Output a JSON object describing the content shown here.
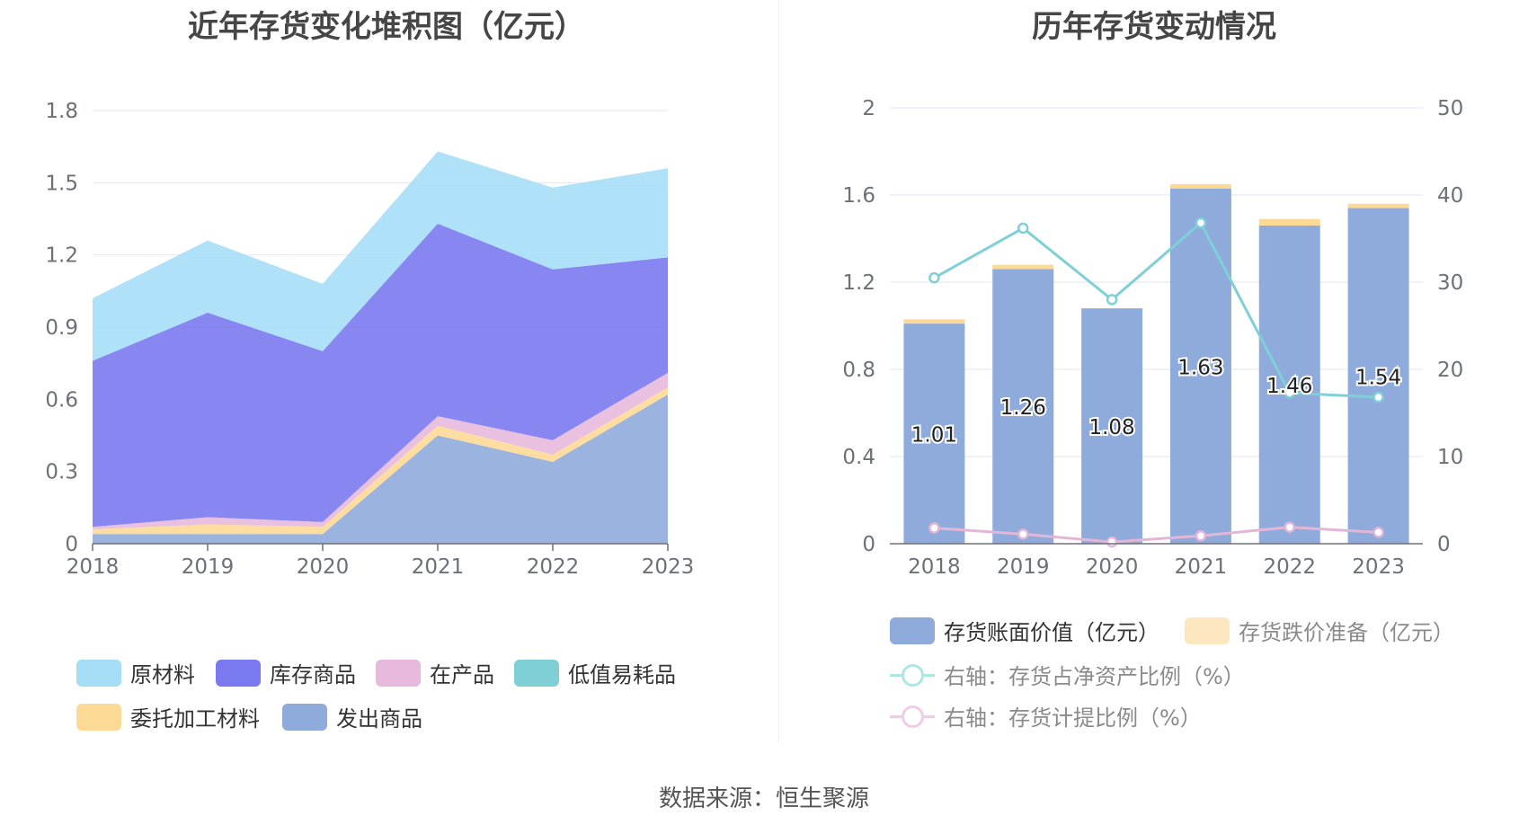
{
  "left_title": "近年存货变化堆积图（亿元）",
  "right_title": "历年存货变动情况",
  "source": "数据来源：恒生聚源",
  "chart_data": [
    {
      "type": "area",
      "stacked": true,
      "title": "近年存货变化堆积图（亿元）",
      "x": [
        "2018",
        "2019",
        "2020",
        "2021",
        "2022",
        "2023"
      ],
      "ylim": [
        0,
        1.8
      ],
      "yticks": [
        "0",
        "0.3",
        "0.6",
        "0.9",
        "1.2",
        "1.5",
        "1.8"
      ],
      "grid": true,
      "legend_position": "bottom",
      "series": [
        {
          "name": "发出商品",
          "color": "#8fabdc",
          "values": [
            0.04,
            0.04,
            0.04,
            0.45,
            0.34,
            0.62
          ]
        },
        {
          "name": "委托加工材料",
          "color": "#fdd996",
          "values": [
            0.02,
            0.04,
            0.03,
            0.04,
            0.03,
            0.03
          ]
        },
        {
          "name": "低值易耗品",
          "color": "#7fd0d6",
          "values": [
            0.0,
            0.0,
            0.0,
            0.0,
            0.0,
            0.0
          ]
        },
        {
          "name": "在产品",
          "color": "#e7b9dc",
          "values": [
            0.01,
            0.03,
            0.02,
            0.04,
            0.06,
            0.06
          ]
        },
        {
          "name": "库存商品",
          "color": "#7b79f0",
          "values": [
            0.69,
            0.85,
            0.71,
            0.8,
            0.71,
            0.48
          ]
        },
        {
          "name": "原材料",
          "color": "#a6def7",
          "values": [
            0.26,
            0.3,
            0.28,
            0.3,
            0.34,
            0.37
          ]
        }
      ],
      "legend_order": [
        "原材料",
        "库存商品",
        "在产品",
        "低值易耗品",
        "委托加工材料",
        "发出商品"
      ]
    },
    {
      "type": "bar",
      "title": "历年存货变动情况",
      "categories": [
        "2018",
        "2019",
        "2020",
        "2021",
        "2022",
        "2023"
      ],
      "ylim": [
        0,
        2
      ],
      "yticks": [
        "0",
        "0.4",
        "0.8",
        "1.2",
        "1.6",
        "2"
      ],
      "y2lim": [
        0,
        50
      ],
      "y2ticks": [
        "0",
        "10",
        "20",
        "30",
        "40",
        "50"
      ],
      "grid": true,
      "legend_position": "bottom",
      "series": [
        {
          "name": "存货账面价值（亿元）",
          "kind": "bar",
          "stack": true,
          "color": "#8fabdc",
          "values": [
            1.01,
            1.26,
            1.08,
            1.63,
            1.46,
            1.54
          ],
          "labels": [
            "1.01",
            "1.26",
            "1.08",
            "1.63",
            "1.46",
            "1.54"
          ]
        },
        {
          "name": "存货跌价准备（亿元）",
          "kind": "bar",
          "stack": true,
          "color": "#fde7c0",
          "bar_color": "#fdd996",
          "values": [
            0.02,
            0.02,
            0.0,
            0.02,
            0.03,
            0.02
          ]
        },
        {
          "name": "右轴：存货占净资产比例（%）",
          "kind": "line",
          "axis": "right",
          "color": "#7fd0d6",
          "legend_color": "#b0e5e8",
          "values": [
            30.5,
            36.2,
            28.0,
            36.8,
            17.3,
            16.8
          ]
        },
        {
          "name": "右轴：存货计提比例（%）",
          "kind": "line",
          "axis": "right",
          "color": "#e3b6d8",
          "legend_color": "#f0cde6",
          "values": [
            1.8,
            1.1,
            0.2,
            0.9,
            1.9,
            1.3
          ]
        }
      ]
    }
  ]
}
